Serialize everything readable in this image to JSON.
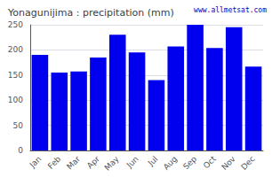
{
  "chart_data": {
    "type": "bar",
    "title": "Yonagunijima : precipitation (mm)",
    "categories": [
      "Jan",
      "Feb",
      "Mar",
      "Apr",
      "May",
      "Jun",
      "Jul",
      "Aug",
      "Sep",
      "Oct",
      "Nov",
      "Dec"
    ],
    "values": [
      190,
      155,
      157,
      185,
      230,
      195,
      140,
      207,
      250,
      204,
      245,
      167
    ],
    "color": "#0000EE",
    "ylim": [
      0,
      250
    ],
    "yticks": [
      0,
      50,
      100,
      150,
      200,
      250
    ],
    "grid": true,
    "annotation": "www.allmetsat.com"
  }
}
